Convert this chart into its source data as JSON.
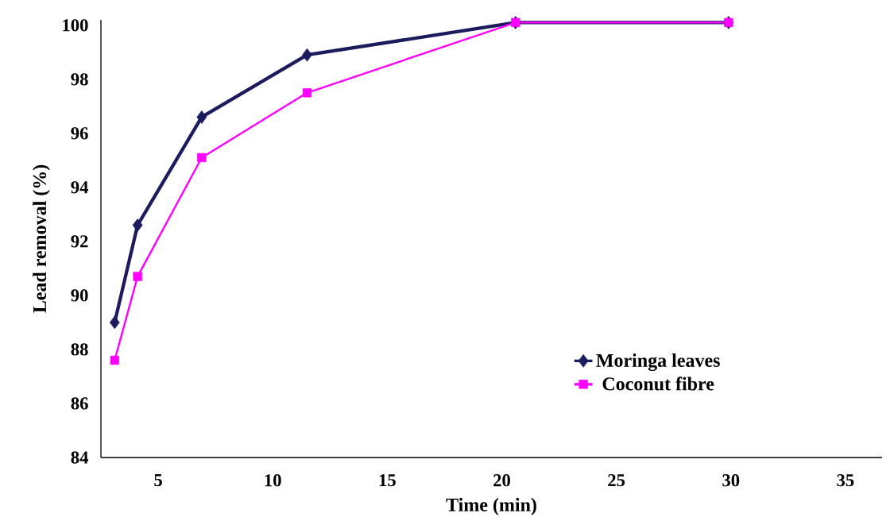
{
  "chart_data": {
    "type": "line",
    "xlabel": "Time (min)",
    "ylabel": "Lead removal (%)",
    "xlim": [
      2.5,
      36.6
    ],
    "ylim": [
      84,
      100.2
    ],
    "xticks": [
      5,
      10,
      15,
      20,
      25,
      30,
      35
    ],
    "yticks": [
      84,
      86,
      88,
      90,
      92,
      94,
      96,
      98,
      100
    ],
    "grid": false,
    "legend": "bottom right",
    "line_style": "solid",
    "series": [
      {
        "name": "Moringa leaves",
        "color": "#1b1b5e",
        "marker": "diamond",
        "x": [
          3.1,
          4.1,
          6.9,
          11.5,
          20.6,
          29.9
        ],
        "values": [
          89.0,
          92.6,
          96.6,
          98.9,
          100.1,
          100.1
        ]
      },
      {
        "name": "Coconut fibre",
        "color": "#ff00ff",
        "marker": "square",
        "x": [
          3.1,
          4.1,
          6.9,
          11.5,
          20.6,
          29.9
        ],
        "values": [
          87.6,
          90.7,
          95.1,
          97.5,
          100.1,
          100.1
        ]
      }
    ]
  }
}
